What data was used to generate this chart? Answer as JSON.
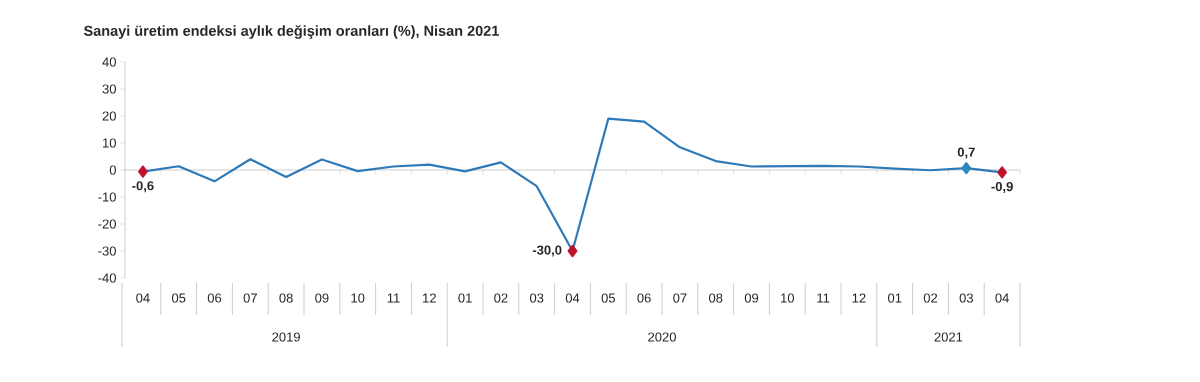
{
  "chart_data": {
    "type": "line",
    "title": "Sanayi üretim endeksi aylık değişim oranları (%), Nisan 2021",
    "categories": [
      "04",
      "05",
      "06",
      "07",
      "08",
      "09",
      "10",
      "11",
      "12",
      "01",
      "02",
      "03",
      "04",
      "05",
      "06",
      "07",
      "08",
      "09",
      "10",
      "11",
      "12",
      "01",
      "02",
      "03",
      "04"
    ],
    "series": [
      {
        "color": "#2e7ab8",
        "values": [
          -0.6,
          1.4,
          -4.2,
          4.0,
          -2.6,
          3.9,
          -0.4,
          1.3,
          2.0,
          -0.5,
          2.8,
          -6.0,
          -30.0,
          19.0,
          17.9,
          8.4,
          3.3,
          1.3,
          1.4,
          1.5,
          1.3,
          0.5,
          -0.1,
          0.7,
          -0.9
        ],
        "colors": [
          "#c0142b",
          null,
          null,
          null,
          null,
          null,
          null,
          null,
          null,
          null,
          null,
          null,
          "#c0142b",
          null,
          null,
          null,
          null,
          null,
          null,
          null,
          null,
          null,
          null,
          "#2e86c1",
          "#c0142b"
        ],
        "value_labels": [
          "-0,6",
          null,
          null,
          null,
          null,
          null,
          null,
          null,
          null,
          null,
          null,
          null,
          "-30,0",
          null,
          null,
          null,
          null,
          null,
          null,
          null,
          null,
          null,
          null,
          "0,7",
          "-0,9"
        ]
      }
    ],
    "line_style": "solid",
    "ylim": [
      -40,
      40
    ],
    "yticks": [
      -40,
      -30,
      -20,
      -10,
      0,
      10,
      20,
      30,
      40
    ],
    "annotations": [
      "2019",
      "2020",
      "2021"
    ]
  }
}
